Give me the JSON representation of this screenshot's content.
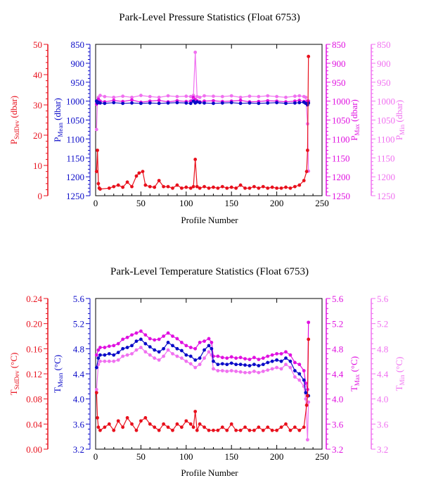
{
  "colors": {
    "stddev": "#e8101c",
    "mean": "#0a0ac8",
    "max": "#e010e0",
    "min": "#f070f0",
    "axis": "#000000"
  },
  "chart_data": [
    {
      "type": "line",
      "title": "Park-Level Pressure Statistics (Float 6753)",
      "xlabel": "Profile Number",
      "xlim": [
        0,
        250
      ],
      "xticks": [
        "0",
        "50",
        "100",
        "150",
        "200",
        "250"
      ],
      "axes": {
        "stddev": {
          "label": "P",
          "sub": "StdDev",
          "unit": " (dbar)",
          "lim": [
            0,
            50
          ],
          "ticks": [
            "0",
            "10",
            "20",
            "30",
            "40",
            "50"
          ]
        },
        "mean": {
          "label": "P",
          "sub": "Mean",
          "unit": " (dbar)",
          "lim": [
            1250,
            850
          ],
          "ticks": [
            "850",
            "900",
            "950",
            "1000",
            "1050",
            "1100",
            "1150",
            "1200",
            "1250"
          ]
        },
        "max": {
          "label": "P",
          "sub": "Max",
          "unit": " (dbar)",
          "lim": [
            1250,
            850
          ],
          "ticks": [
            "850",
            "900",
            "950",
            "1000",
            "1050",
            "1100",
            "1150",
            "1200",
            "1250"
          ]
        },
        "min": {
          "label": "P",
          "sub": "Min",
          "unit": " (dbar)",
          "lim": [
            1250,
            850
          ],
          "ticks": [
            "850",
            "900",
            "950",
            "1000",
            "1050",
            "1100",
            "1150",
            "1200",
            "1250"
          ]
        }
      },
      "series": {
        "stddev": {
          "x": [
            1,
            2,
            3,
            4,
            5,
            15,
            20,
            25,
            30,
            35,
            40,
            45,
            48,
            52,
            55,
            60,
            65,
            70,
            75,
            80,
            85,
            90,
            95,
            100,
            105,
            108,
            110,
            112,
            115,
            120,
            125,
            130,
            135,
            140,
            145,
            150,
            155,
            160,
            165,
            170,
            175,
            180,
            185,
            190,
            195,
            200,
            205,
            210,
            215,
            220,
            225,
            230,
            233,
            234,
            235
          ],
          "y": [
            8,
            15,
            4,
            2.5,
            2.2,
            2.5,
            3,
            3.5,
            2.8,
            4.5,
            3,
            6.5,
            7.5,
            8,
            3.5,
            3,
            2.8,
            5,
            3,
            3,
            2.5,
            3.5,
            2.5,
            2.8,
            2.5,
            3,
            12,
            3,
            2.5,
            3,
            2.5,
            2.8,
            2.5,
            3,
            2.5,
            2.8,
            2.5,
            3.5,
            2.5,
            2.5,
            3,
            2.5,
            3,
            2.5,
            2.8,
            2.5,
            2.5,
            2.8,
            2.5,
            3,
            3.5,
            5,
            8,
            15,
            46
          ]
        },
        "mean": {
          "x": [
            1,
            2,
            3,
            5,
            10,
            20,
            30,
            40,
            50,
            60,
            70,
            80,
            90,
            100,
            105,
            108,
            110,
            112,
            115,
            120,
            130,
            140,
            150,
            160,
            170,
            180,
            190,
            200,
            210,
            220,
            225,
            230,
            232,
            234,
            235
          ],
          "y": [
            1000,
            1005,
            1003,
            1005,
            1006,
            1004,
            1006,
            1005,
            1006,
            1005,
            1006,
            1005,
            1004,
            1005,
            1006,
            1000,
            1005,
            1002,
            1004,
            1005,
            1006,
            1005,
            1004,
            1006,
            1005,
            1006,
            1005,
            1004,
            1006,
            1005,
            1004,
            1003,
            1006,
            1010,
            1005
          ]
        },
        "max": {
          "x": [
            1,
            2,
            3,
            5,
            10,
            20,
            30,
            40,
            50,
            60,
            70,
            80,
            90,
            100,
            105,
            108,
            110,
            112,
            115,
            120,
            130,
            140,
            150,
            160,
            170,
            180,
            190,
            200,
            210,
            220,
            225,
            230,
            232,
            234,
            235
          ],
          "y": [
            1008,
            1005,
            995,
            1000,
            1002,
            998,
            1001,
            997,
            1003,
            1000,
            998,
            1002,
            999,
            1001,
            1000,
            990,
            996,
            999,
            1002,
            1000,
            999,
            1001,
            1000,
            998,
            1002,
            1001,
            999,
            1000,
            1002,
            1000,
            998,
            1001,
            1003,
            1000,
            1000
          ]
        },
        "min": {
          "x": [
            1,
            2,
            3,
            5,
            10,
            20,
            30,
            40,
            50,
            60,
            70,
            80,
            90,
            100,
            105,
            108,
            110,
            112,
            115,
            120,
            130,
            140,
            150,
            160,
            170,
            180,
            190,
            200,
            210,
            220,
            225,
            230,
            232,
            234,
            235
          ],
          "y": [
            1075,
            1000,
            990,
            985,
            988,
            990,
            987,
            990,
            985,
            988,
            990,
            986,
            988,
            987,
            988,
            985,
            871,
            988,
            990,
            986,
            987,
            988,
            986,
            990,
            987,
            988,
            986,
            988,
            990,
            987,
            986,
            988,
            990,
            1060,
            1185
          ]
        }
      }
    },
    {
      "type": "line",
      "title": "Park-Level Temperature Statistics (Float 6753)",
      "xlabel": "Profile Number",
      "xlim": [
        0,
        250
      ],
      "xticks": [
        "0",
        "50",
        "100",
        "150",
        "200",
        "250"
      ],
      "axes": {
        "stddev": {
          "label": "T",
          "sub": "StdDev",
          "unit": " (°C)",
          "lim": [
            0,
            0.24
          ],
          "ticks": [
            "0.00",
            "0.04",
            "0.08",
            "0.12",
            "0.16",
            "0.20",
            "0.24"
          ]
        },
        "mean": {
          "label": "T",
          "sub": "Mean",
          "unit": " (°C)",
          "lim": [
            3.2,
            5.6
          ],
          "ticks": [
            "3.2",
            "3.6",
            "4.0",
            "4.4",
            "4.8",
            "5.2",
            "5.6"
          ]
        },
        "max": {
          "label": "T",
          "sub": "Max",
          "unit": " (°C)",
          "lim": [
            3.2,
            5.6
          ],
          "ticks": [
            "3.2",
            "3.6",
            "4.0",
            "4.4",
            "4.8",
            "5.2",
            "5.6"
          ]
        },
        "min": {
          "label": "T",
          "sub": "Min",
          "unit": " (°C)",
          "lim": [
            3.2,
            5.6
          ],
          "ticks": [
            "3.2",
            "3.6",
            "4.0",
            "4.4",
            "4.8",
            "5.2",
            "5.6"
          ]
        }
      },
      "series": {
        "stddev": {
          "x": [
            1,
            2,
            3,
            5,
            10,
            15,
            20,
            25,
            30,
            35,
            40,
            45,
            50,
            55,
            60,
            65,
            70,
            75,
            80,
            85,
            90,
            95,
            100,
            105,
            108,
            110,
            112,
            115,
            120,
            125,
            130,
            135,
            140,
            145,
            150,
            155,
            160,
            165,
            170,
            175,
            180,
            185,
            190,
            195,
            200,
            205,
            210,
            215,
            220,
            225,
            230,
            233,
            234,
            235
          ],
          "y": [
            0.09,
            0.05,
            0.035,
            0.03,
            0.035,
            0.04,
            0.03,
            0.045,
            0.035,
            0.05,
            0.04,
            0.03,
            0.045,
            0.05,
            0.04,
            0.035,
            0.03,
            0.04,
            0.035,
            0.03,
            0.04,
            0.035,
            0.045,
            0.04,
            0.035,
            0.06,
            0.03,
            0.04,
            0.035,
            0.03,
            0.03,
            0.03,
            0.035,
            0.03,
            0.04,
            0.03,
            0.03,
            0.035,
            0.03,
            0.03,
            0.035,
            0.03,
            0.035,
            0.03,
            0.03,
            0.035,
            0.04,
            0.03,
            0.035,
            0.03,
            0.035,
            0.07,
            0.085,
            0.175
          ]
        },
        "mean": {
          "x": [
            1,
            3,
            5,
            10,
            15,
            20,
            25,
            30,
            35,
            40,
            45,
            50,
            55,
            60,
            65,
            70,
            75,
            80,
            85,
            90,
            95,
            100,
            105,
            110,
            115,
            120,
            125,
            128,
            130,
            135,
            140,
            145,
            150,
            155,
            160,
            165,
            170,
            175,
            180,
            185,
            190,
            195,
            200,
            205,
            210,
            215,
            220,
            225,
            230,
            232,
            234,
            235
          ],
          "y": [
            4.5,
            4.65,
            4.7,
            4.7,
            4.72,
            4.7,
            4.74,
            4.8,
            4.82,
            4.85,
            4.92,
            4.95,
            4.88,
            4.83,
            4.78,
            4.75,
            4.8,
            4.9,
            4.85,
            4.8,
            4.77,
            4.7,
            4.68,
            4.62,
            4.65,
            4.78,
            4.85,
            4.8,
            4.6,
            4.55,
            4.56,
            4.55,
            4.57,
            4.55,
            4.55,
            4.54,
            4.53,
            4.55,
            4.53,
            4.55,
            4.58,
            4.6,
            4.62,
            4.6,
            4.65,
            4.6,
            4.45,
            4.4,
            4.3,
            4.1,
            4.05,
            4.05
          ]
        },
        "max": {
          "x": [
            1,
            3,
            5,
            10,
            15,
            20,
            25,
            30,
            35,
            40,
            45,
            50,
            55,
            60,
            65,
            70,
            75,
            80,
            85,
            90,
            95,
            100,
            105,
            110,
            115,
            120,
            125,
            128,
            130,
            135,
            140,
            145,
            150,
            155,
            160,
            165,
            170,
            175,
            180,
            185,
            190,
            195,
            200,
            205,
            210,
            215,
            220,
            225,
            230,
            232,
            234,
            235
          ],
          "y": [
            4.7,
            4.78,
            4.82,
            4.82,
            4.84,
            4.85,
            4.88,
            4.95,
            4.98,
            5.02,
            5.05,
            5.08,
            5.02,
            4.96,
            4.94,
            4.95,
            5.0,
            5.05,
            5.0,
            4.96,
            4.9,
            4.85,
            4.82,
            4.8,
            4.9,
            4.92,
            4.96,
            4.9,
            4.68,
            4.68,
            4.66,
            4.65,
            4.67,
            4.65,
            4.66,
            4.64,
            4.63,
            4.66,
            4.63,
            4.65,
            4.68,
            4.7,
            4.72,
            4.72,
            4.75,
            4.7,
            4.58,
            4.55,
            4.45,
            4.25,
            4.15,
            5.22
          ]
        },
        "min": {
          "x": [
            1,
            3,
            5,
            10,
            15,
            20,
            25,
            30,
            35,
            40,
            45,
            50,
            55,
            60,
            65,
            70,
            75,
            80,
            85,
            90,
            95,
            100,
            105,
            110,
            115,
            120,
            125,
            128,
            130,
            135,
            140,
            145,
            150,
            155,
            160,
            165,
            170,
            175,
            180,
            185,
            190,
            195,
            200,
            205,
            210,
            215,
            220,
            225,
            230,
            232,
            234,
            235
          ],
          "y": [
            4.15,
            4.55,
            4.6,
            4.6,
            4.6,
            4.6,
            4.62,
            4.68,
            4.7,
            4.72,
            4.78,
            4.82,
            4.75,
            4.7,
            4.65,
            4.62,
            4.68,
            4.78,
            4.72,
            4.68,
            4.65,
            4.6,
            4.56,
            4.5,
            4.55,
            4.65,
            4.75,
            4.7,
            4.48,
            4.45,
            4.45,
            4.44,
            4.45,
            4.44,
            4.43,
            4.42,
            4.42,
            4.44,
            4.42,
            4.44,
            4.46,
            4.48,
            4.5,
            4.48,
            4.55,
            4.5,
            4.35,
            4.3,
            4.2,
            4.0,
            3.35,
            3.95
          ]
        }
      }
    }
  ]
}
